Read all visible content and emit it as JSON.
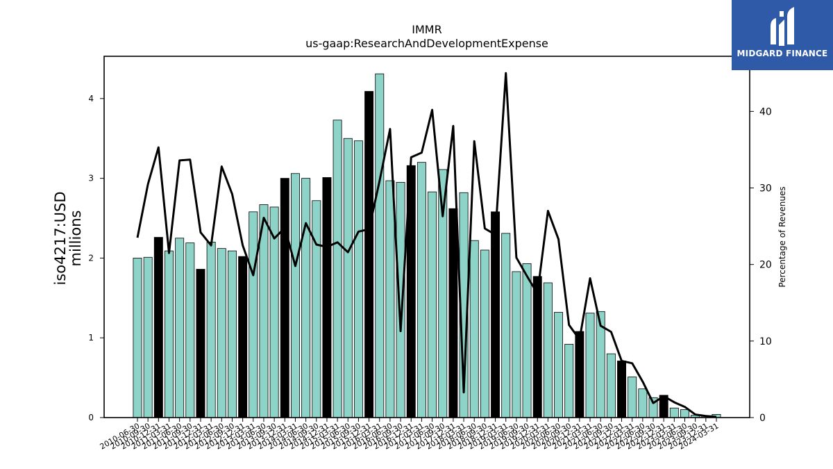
{
  "chart_data": {
    "type": "bar",
    "title": "IMMR",
    "subtitle": "us-gaap:ResearchAndDevelopmentExpense",
    "ylabel_left_lines": [
      "iso4217:USD",
      "millions"
    ],
    "ylabel_right": "Percentage of Revenues",
    "ylim_left": [
      0,
      4.53
    ],
    "ylim_right": [
      0,
      47.2
    ],
    "y_ticks_left": [
      "0",
      "1",
      "2",
      "3",
      "4"
    ],
    "y_ticks_right": [
      "0",
      "10",
      "20",
      "30",
      "40"
    ],
    "bar_color": "#8dd3c7",
    "highlight_color": "#000000",
    "categories": [
      "2010-06-30",
      "2010-09-30",
      "2010-12-31",
      "2011-03-31",
      "2011-06-30",
      "2011-09-30",
      "2011-12-31",
      "2012-03-31",
      "2012-06-30",
      "2012-09-30",
      "2012-12-31",
      "2013-03-31",
      "2013-06-30",
      "2013-09-30",
      "2013-12-31",
      "2014-03-31",
      "2014-06-30",
      "2014-09-30",
      "2014-12-31",
      "2015-03-31",
      "2015-06-30",
      "2015-09-30",
      "2015-12-31",
      "2016-03-31",
      "2016-06-30",
      "2016-09-30",
      "2016-12-31",
      "2017-03-31",
      "2017-06-30",
      "2017-09-30",
      "2017-12-31",
      "2018-03-31",
      "2018-06-30",
      "2018-09-30",
      "2018-12-31",
      "2019-03-31",
      "2019-06-30",
      "2019-09-30",
      "2019-12-31",
      "2020-03-31",
      "2020-06-30",
      "2020-09-30",
      "2020-12-31",
      "2021-03-31",
      "2021-06-30",
      "2021-09-30",
      "2021-12-31",
      "2022-03-31",
      "2022-06-30",
      "2022-09-30",
      "2022-12-31",
      "2023-03-31",
      "2023-06-30",
      "2023-09-30",
      "2023-12-31",
      "2024-03-31"
    ],
    "x_tick_labels": [
      "2010-06-30",
      "2010-09-30",
      "2010-12-31",
      "2011-03-31",
      "2011-06-30",
      "2011-09-30",
      "2011-12-31",
      "2012-03-31",
      "2012-06-30",
      "2012-09-30",
      "2012-12-31",
      "2013-03-31",
      "2013-06-30",
      "2013-09-30",
      "2013-12-31",
      "2014-03-31",
      "2014-06-30",
      "2014-09-30",
      "2014-12-31",
      "2015-03-31",
      "2015-06-30",
      "2015-09-30",
      "2015-12-31",
      "2016-03-31",
      "2016-06-30",
      "2016-09-30",
      "2016-12-31",
      "2017-03-31",
      "2017-06-30",
      "2017-09-30",
      "2017-12-31",
      "2018-03-31",
      "2018-06-30",
      "2018-09-30",
      "2018-12-31",
      "2019-03-31",
      "2019-06-30",
      "2019-09-30",
      "2019-12-31",
      "2020-03-31",
      "2020-06-30",
      "2020-09-30",
      "2020-12-31",
      "2021-03-31",
      "2021-06-30",
      "2021-09-30",
      "2021-12-31",
      "2022-03-31",
      "2022-06-30",
      "2022-09-30",
      "2022-12-31",
      "2023-03-31",
      "2023-06-30",
      "2023-09-30",
      "2023-12-31",
      "2024-03-31"
    ],
    "values": [
      2.0,
      2.01,
      2.26,
      2.09,
      2.25,
      2.19,
      1.86,
      2.2,
      2.12,
      2.09,
      2.02,
      2.58,
      2.67,
      2.64,
      3.0,
      3.06,
      3.0,
      2.72,
      3.01,
      3.73,
      3.5,
      3.47,
      4.09,
      4.31,
      2.97,
      2.95,
      3.16,
      3.2,
      2.83,
      3.11,
      2.62,
      2.82,
      2.22,
      2.1,
      2.58,
      2.31,
      1.83,
      1.93,
      1.77,
      1.69,
      1.32,
      0.92,
      1.08,
      1.31,
      1.33,
      0.8,
      0.71,
      0.51,
      0.36,
      0.25,
      0.28,
      0.12,
      0.1,
      0.03,
      0.02,
      0.04
    ],
    "highlighted": [
      false,
      false,
      true,
      false,
      false,
      false,
      true,
      false,
      false,
      false,
      true,
      false,
      false,
      false,
      true,
      false,
      false,
      false,
      true,
      false,
      false,
      false,
      true,
      false,
      false,
      false,
      true,
      false,
      false,
      false,
      true,
      false,
      false,
      false,
      true,
      false,
      false,
      false,
      true,
      false,
      false,
      false,
      true,
      false,
      false,
      false,
      true,
      false,
      false,
      false,
      true,
      false,
      false,
      false,
      false,
      false
    ],
    "series": [
      {
        "axis": "right",
        "type": "line",
        "values": [
          23.5,
          30.5,
          35.3,
          21.5,
          33.6,
          33.7,
          24.2,
          22.5,
          32.8,
          29.2,
          22.5,
          18.6,
          26.1,
          23.4,
          24.8,
          19.8,
          25.4,
          22.6,
          22.3,
          22.9,
          21.6,
          24.3,
          24.6,
          30.9,
          37.7,
          11.3,
          34.0,
          34.6,
          40.2,
          26.3,
          38.1,
          3.3,
          36.1,
          24.7,
          23.9,
          45.0,
          20.9,
          18.5,
          16.2,
          27.0,
          23.3,
          12.1,
          10.2,
          18.2,
          12.0,
          11.2,
          7.4,
          7.1,
          4.7,
          1.9,
          2.8,
          2.0,
          1.4,
          0.4,
          0.2,
          0.1
        ]
      }
    ]
  },
  "logo": {
    "text": "MIDGARD FINANCE",
    "color": "#2f5aa8"
  }
}
